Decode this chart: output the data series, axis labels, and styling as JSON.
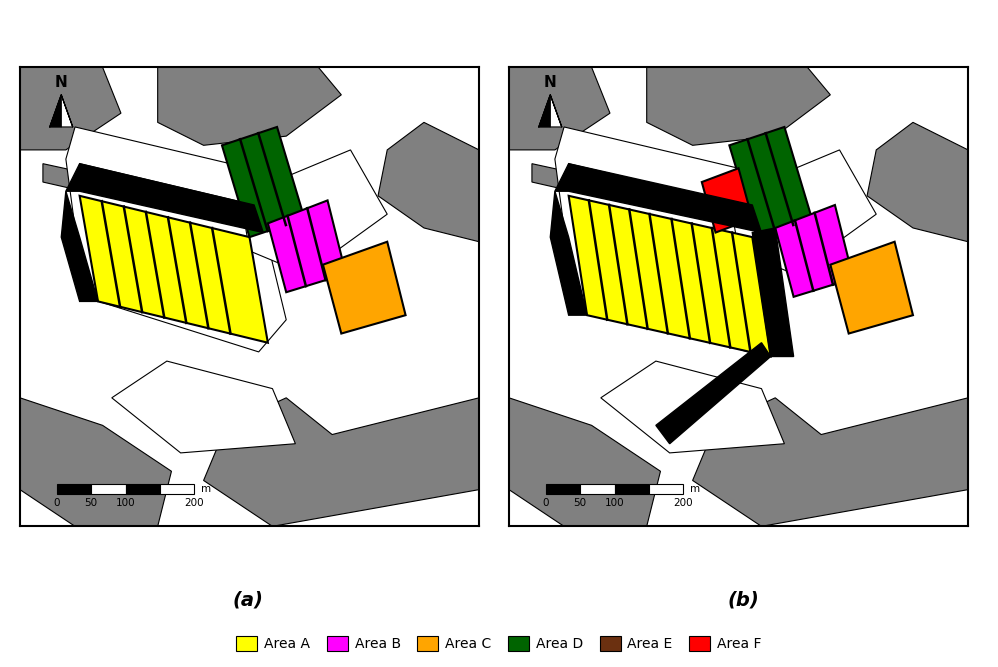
{
  "fig_width": 9.98,
  "fig_height": 6.67,
  "dpi": 100,
  "bg_color": "#ffffff",
  "colors": {
    "land": "#808080",
    "water": "#ffffff",
    "area_a": "#ffff00",
    "area_b": "#ff00ff",
    "area_c": "#ffa500",
    "area_d": "#006400",
    "area_e": "#6B3010",
    "area_f": "#ff0000",
    "black": "#000000",
    "white": "#ffffff"
  },
  "legend_items": [
    {
      "label": "Area A",
      "color": "#ffff00"
    },
    {
      "label": "Area B",
      "color": "#ff00ff"
    },
    {
      "label": "Area C",
      "color": "#ffa500"
    },
    {
      "label": "Area D",
      "color": "#006400"
    },
    {
      "label": "Area E",
      "color": "#6B3010"
    },
    {
      "label": "Area F",
      "color": "#ff0000"
    }
  ],
  "panel_labels": [
    "(a)",
    "(b)"
  ]
}
